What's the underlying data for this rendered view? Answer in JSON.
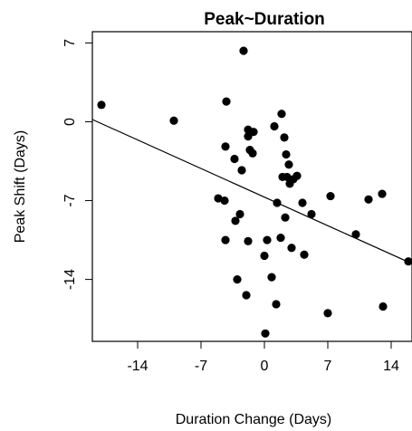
{
  "chart_data": {
    "type": "scatter",
    "title": "Peak~Duration",
    "xlabel": "Duration Change (Days)",
    "ylabel": "Peak Shift (Days)",
    "xlim": [
      -19,
      16.3
    ],
    "ylim": [
      -19.5,
      8
    ],
    "x_ticks": [
      -14,
      -7,
      0,
      7,
      14
    ],
    "x_tick_labels": [
      "-14",
      "-7",
      "0",
      "7",
      "14"
    ],
    "y_ticks": [
      7,
      0,
      -7,
      -14
    ],
    "y_tick_labels": [
      "7",
      "0",
      "-7",
      "-14"
    ],
    "grid": false,
    "legend": "none",
    "point_color": "#000000",
    "fit_line": {
      "x": [
        -19,
        16.3
      ],
      "y": [
        0.2,
        -12.6
      ]
    },
    "points": [
      {
        "x": -18,
        "y": 1.5
      },
      {
        "x": -10,
        "y": 0.1
      },
      {
        "x": -4.2,
        "y": 1.8
      },
      {
        "x": -2.3,
        "y": 6.3
      },
      {
        "x": -4.3,
        "y": -2.2
      },
      {
        "x": -3.3,
        "y": -3.3
      },
      {
        "x": -2.5,
        "y": -4.3
      },
      {
        "x": -1.8,
        "y": -0.7
      },
      {
        "x": -1.2,
        "y": -0.9
      },
      {
        "x": -1.8,
        "y": -1.3
      },
      {
        "x": -1.6,
        "y": -2.5
      },
      {
        "x": -1.3,
        "y": -2.8
      },
      {
        "x": 1.1,
        "y": -0.4
      },
      {
        "x": 1.9,
        "y": 0.7
      },
      {
        "x": 2.2,
        "y": -1.4
      },
      {
        "x": 2.4,
        "y": -2.9
      },
      {
        "x": 2.7,
        "y": -3.8
      },
      {
        "x": 2.0,
        "y": -4.9
      },
      {
        "x": 2.5,
        "y": -4.9
      },
      {
        "x": 2.8,
        "y": -5.5
      },
      {
        "x": 3.2,
        "y": -5.1
      },
      {
        "x": 3.6,
        "y": -4.8
      },
      {
        "x": -5.1,
        "y": -6.8
      },
      {
        "x": -4.4,
        "y": -7.0
      },
      {
        "x": 1.4,
        "y": -7.2
      },
      {
        "x": -3.2,
        "y": -8.8
      },
      {
        "x": -2.7,
        "y": -8.2
      },
      {
        "x": 2.3,
        "y": -8.5
      },
      {
        "x": 4.2,
        "y": -7.2
      },
      {
        "x": 7.3,
        "y": -6.6
      },
      {
        "x": 11.5,
        "y": -6.9
      },
      {
        "x": 13.0,
        "y": -6.4
      },
      {
        "x": -4.3,
        "y": -10.5
      },
      {
        "x": -1.8,
        "y": -10.6
      },
      {
        "x": 0.3,
        "y": -10.5
      },
      {
        "x": 1.8,
        "y": -10.3
      },
      {
        "x": 3.0,
        "y": -11.2
      },
      {
        "x": 4.4,
        "y": -11.8
      },
      {
        "x": 5.2,
        "y": -8.2
      },
      {
        "x": 0.0,
        "y": -11.9
      },
      {
        "x": 10.1,
        "y": -10.0
      },
      {
        "x": 15.9,
        "y": -12.4
      },
      {
        "x": -3.0,
        "y": -14.0
      },
      {
        "x": 0.8,
        "y": -13.8
      },
      {
        "x": -2.0,
        "y": -15.4
      },
      {
        "x": 1.3,
        "y": -16.2
      },
      {
        "x": 7.0,
        "y": -17.0
      },
      {
        "x": 13.1,
        "y": -16.4
      },
      {
        "x": 0.1,
        "y": -18.8
      }
    ]
  }
}
